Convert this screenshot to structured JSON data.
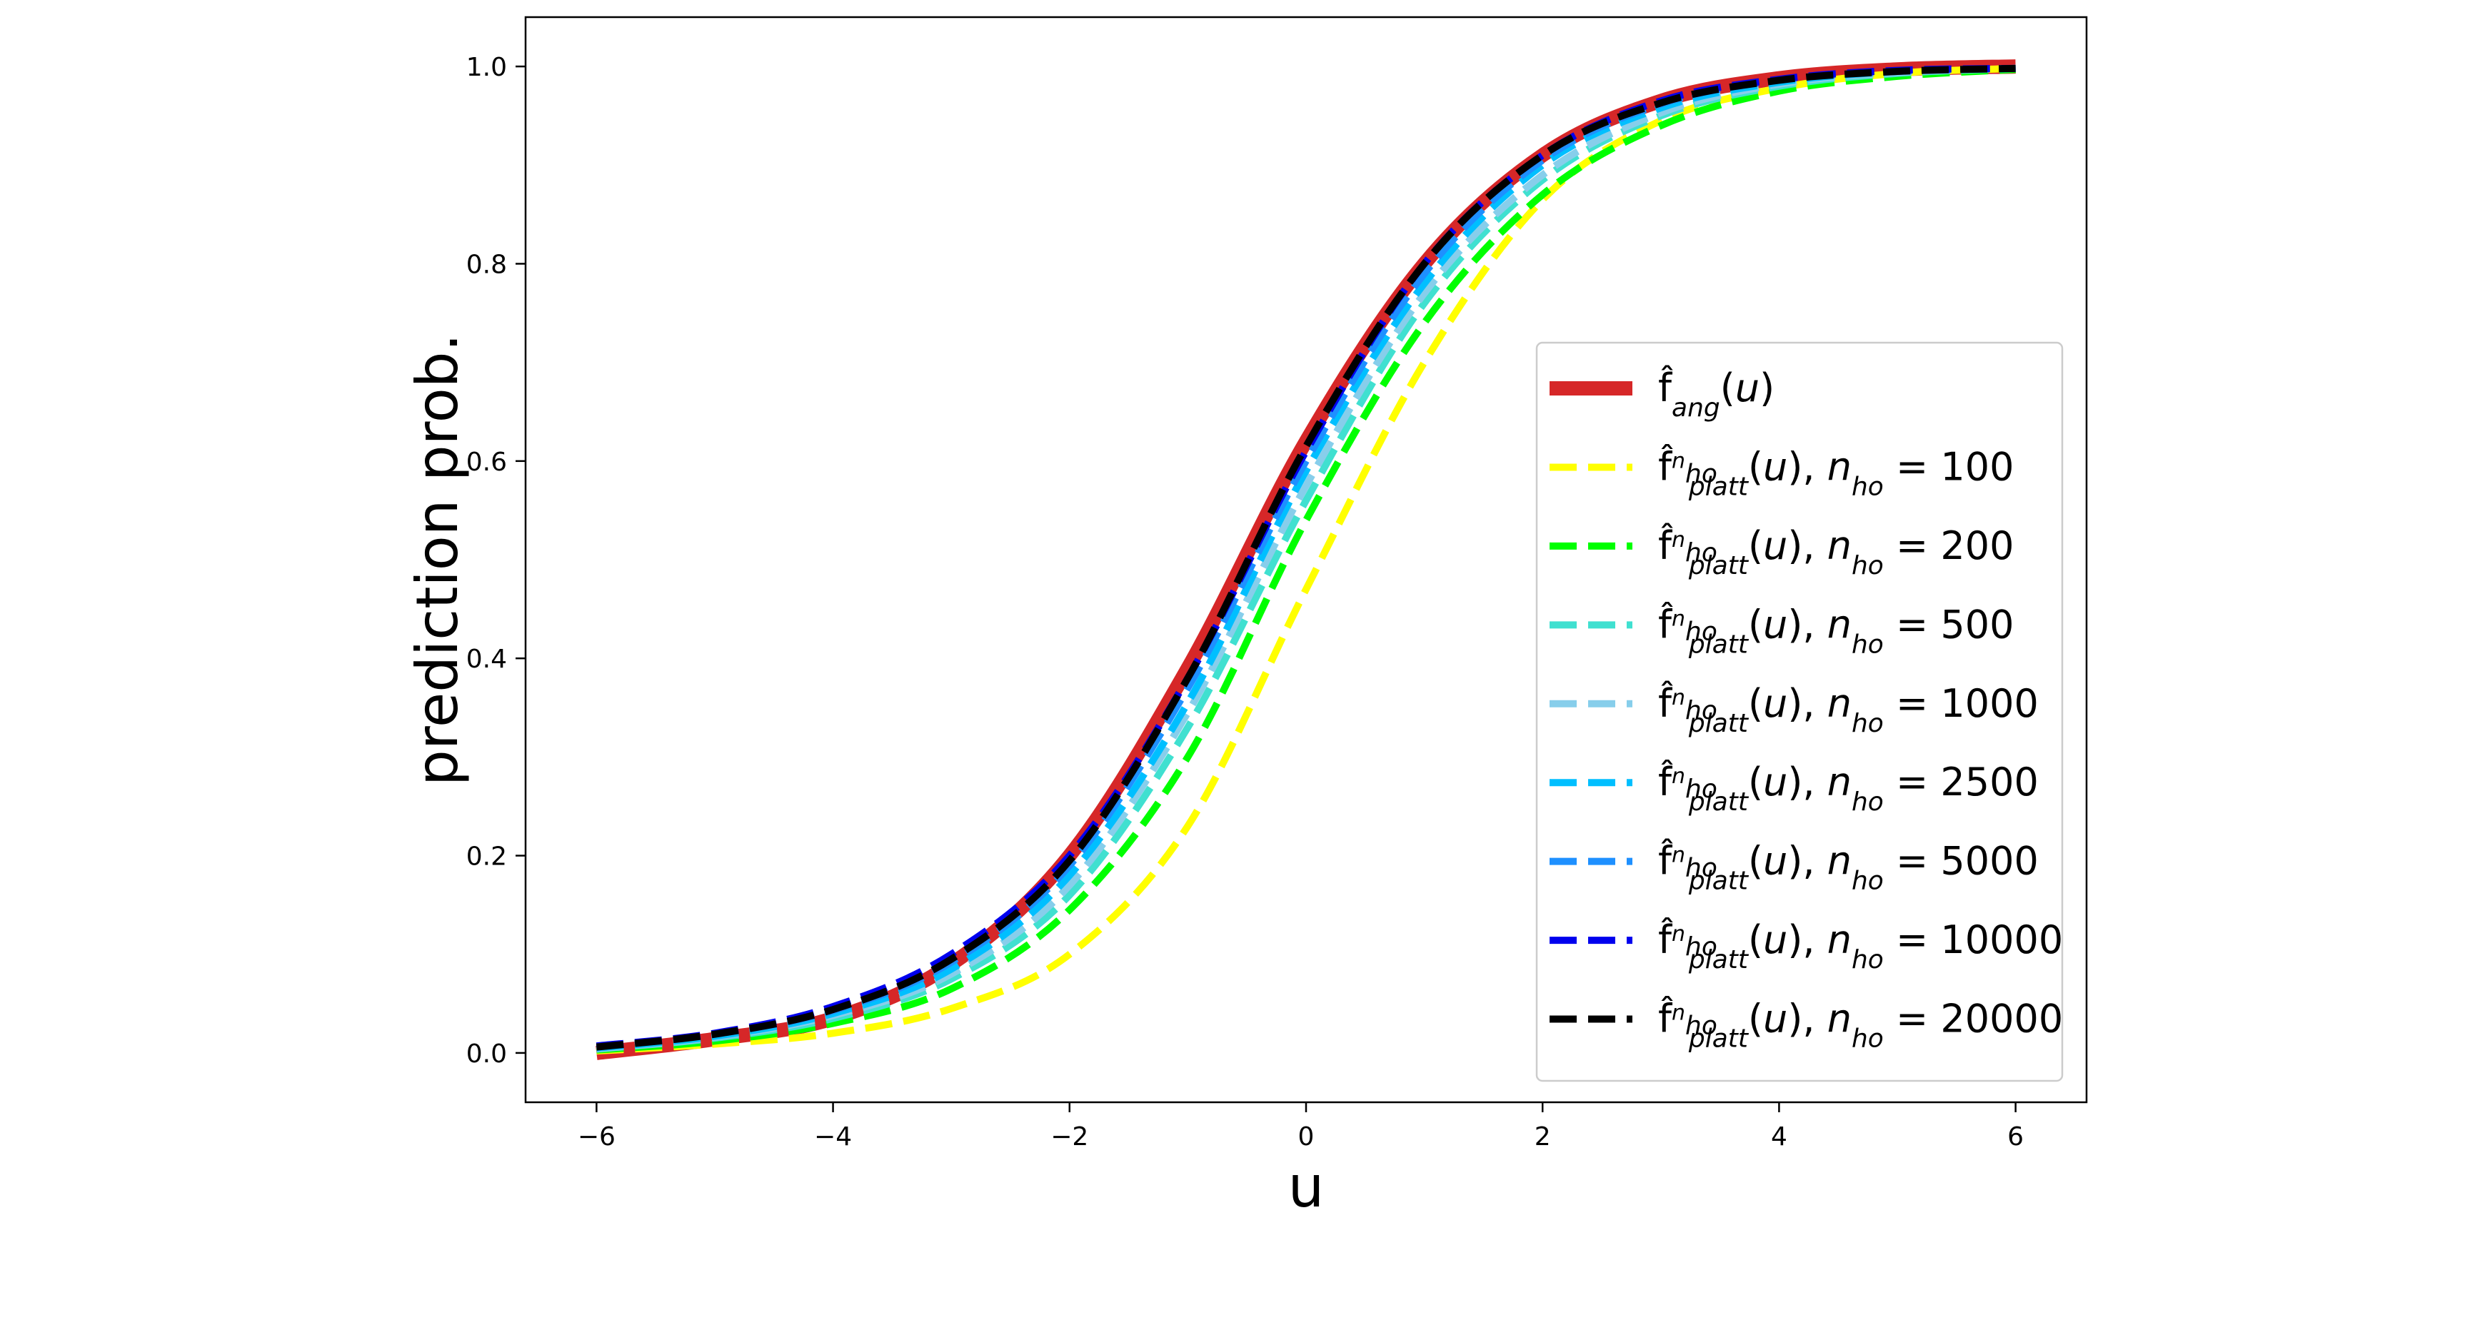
{
  "chart_data": {
    "type": "line",
    "xlabel": "u",
    "ylabel": "prediction prob.",
    "xlim": [
      -6.6,
      6.6
    ],
    "ylim": [
      -0.05,
      1.05
    ],
    "x_ticks": [
      -6,
      -4,
      -2,
      0,
      2,
      4,
      6
    ],
    "x_tick_labels": [
      "−6",
      "−4",
      "−2",
      "0",
      "2",
      "4",
      "6"
    ],
    "y_ticks": [
      0.0,
      0.2,
      0.4,
      0.6,
      0.8,
      1.0
    ],
    "y_tick_labels": [
      "0.0",
      "0.2",
      "0.4",
      "0.6",
      "0.8",
      "1.0"
    ],
    "grid": false,
    "legend_position": "center-right",
    "x": [
      -6,
      -5,
      -4,
      -3,
      -2,
      -1,
      0,
      1,
      2,
      3,
      4,
      5,
      6
    ],
    "series": [
      {
        "legend_html": "f̂<tspan class=\"legend-sub\" baseline-shift=\"sub\" font-style=\"italic\">ang</tspan>(<tspan font-style=\"italic\">u</tspan>)",
        "color": "#d62728",
        "style": "solid",
        "values": [
          0.0,
          0.014,
          0.035,
          0.09,
          0.2,
          0.39,
          0.62,
          0.8,
          0.91,
          0.965,
          0.988,
          0.997,
          1.0
        ]
      },
      {
        "legend_html": "f̂<tspan class=\"legend-sup\" baseline-shift=\"super\" font-style=\"italic\">n<tspan class=\"legend-sub\" baseline-shift=\"sub\">ho</tspan></tspan><tspan class=\"legend-sub\" baseline-shift=\"sub\" font-style=\"italic\" dx=\"-40\">platt</tspan>(<tspan font-style=\"italic\">u</tspan>), <tspan font-style=\"italic\">n</tspan><tspan class=\"legend-sub\" baseline-shift=\"sub\" font-style=\"italic\">ho</tspan> = 100",
        "color": "#ffff00",
        "style": "dashed",
        "values": [
          0.002,
          0.009,
          0.02,
          0.045,
          0.1,
          0.23,
          0.47,
          0.7,
          0.865,
          0.945,
          0.978,
          0.993,
          0.998
        ]
      },
      {
        "legend_html": "f̂<tspan class=\"legend-sup\" baseline-shift=\"super\" font-style=\"italic\">n<tspan class=\"legend-sub\" baseline-shift=\"sub\">ho</tspan></tspan><tspan class=\"legend-sub\" baseline-shift=\"sub\" font-style=\"italic\" dx=\"-40\">platt</tspan>(<tspan font-style=\"italic\">u</tspan>), <tspan font-style=\"italic\">n</tspan><tspan class=\"legend-sub\" baseline-shift=\"sub\" font-style=\"italic\">ho</tspan> = 200",
        "color": "#00ff00",
        "style": "dashed",
        "values": [
          0.003,
          0.012,
          0.03,
          0.065,
          0.145,
          0.3,
          0.54,
          0.74,
          0.87,
          0.94,
          0.975,
          0.99,
          0.997
        ]
      },
      {
        "legend_html": "f̂<tspan class=\"legend-sup\" baseline-shift=\"super\" font-style=\"italic\">n<tspan class=\"legend-sub\" baseline-shift=\"sub\">ho</tspan></tspan><tspan class=\"legend-sub\" baseline-shift=\"sub\" font-style=\"italic\" dx=\"-40\">platt</tspan>(<tspan font-style=\"italic\">u</tspan>), <tspan font-style=\"italic\">n</tspan><tspan class=\"legend-sub\" baseline-shift=\"sub\" font-style=\"italic\">ho</tspan> = 500",
        "color": "#40e0d0",
        "style": "dashed",
        "values": [
          0.004,
          0.015,
          0.035,
          0.075,
          0.16,
          0.33,
          0.56,
          0.76,
          0.885,
          0.95,
          0.98,
          0.993,
          0.998
        ]
      },
      {
        "legend_html": "f̂<tspan class=\"legend-sup\" baseline-shift=\"super\" font-style=\"italic\">n<tspan class=\"legend-sub\" baseline-shift=\"sub\">ho</tspan></tspan><tspan class=\"legend-sub\" baseline-shift=\"sub\" font-style=\"italic\" dx=\"-40\">platt</tspan>(<tspan font-style=\"italic\">u</tspan>), <tspan font-style=\"italic\">n</tspan><tspan class=\"legend-sub\" baseline-shift=\"sub\" font-style=\"italic\">ho</tspan> = 1000",
        "color": "#87ceeb",
        "style": "dashed",
        "values": [
          0.004,
          0.016,
          0.038,
          0.08,
          0.17,
          0.345,
          0.575,
          0.77,
          0.89,
          0.953,
          0.982,
          0.994,
          0.998
        ]
      },
      {
        "legend_html": "f̂<tspan class=\"legend-sup\" baseline-shift=\"super\" font-style=\"italic\">n<tspan class=\"legend-sub\" baseline-shift=\"sub\">ho</tspan></tspan><tspan class=\"legend-sub\" baseline-shift=\"sub\" font-style=\"italic\" dx=\"-40\">platt</tspan>(<tspan font-style=\"italic\">u</tspan>), <tspan font-style=\"italic\">n</tspan><tspan class=\"legend-sub\" baseline-shift=\"sub\" font-style=\"italic\">ho</tspan> = 2500",
        "color": "#00bfff",
        "style": "dashed",
        "values": [
          0.005,
          0.017,
          0.04,
          0.085,
          0.18,
          0.355,
          0.59,
          0.78,
          0.9,
          0.958,
          0.984,
          0.995,
          0.998
        ]
      },
      {
        "legend_html": "f̂<tspan class=\"legend-sup\" baseline-shift=\"super\" font-style=\"italic\">n<tspan class=\"legend-sub\" baseline-shift=\"sub\">ho</tspan></tspan><tspan class=\"legend-sub\" baseline-shift=\"sub\" font-style=\"italic\" dx=\"-40\">platt</tspan>(<tspan font-style=\"italic\">u</tspan>), <tspan font-style=\"italic\">n</tspan><tspan class=\"legend-sub\" baseline-shift=\"sub\" font-style=\"italic\">ho</tspan> = 5000",
        "color": "#1e90ff",
        "style": "dashed",
        "values": [
          0.006,
          0.019,
          0.043,
          0.092,
          0.19,
          0.37,
          0.6,
          0.79,
          0.905,
          0.962,
          0.986,
          0.995,
          0.998
        ]
      },
      {
        "legend_html": "f̂<tspan class=\"legend-sup\" baseline-shift=\"super\" font-style=\"italic\">n<tspan class=\"legend-sub\" baseline-shift=\"sub\">ho</tspan></tspan><tspan class=\"legend-sub\" baseline-shift=\"sub\" font-style=\"italic\" dx=\"-40\">platt</tspan>(<tspan font-style=\"italic\">u</tspan>), <tspan font-style=\"italic\">n</tspan><tspan class=\"legend-sub\" baseline-shift=\"sub\" font-style=\"italic\">ho</tspan> = 10000",
        "color": "#0000ee",
        "style": "dashed",
        "values": [
          0.007,
          0.02,
          0.047,
          0.1,
          0.2,
          0.38,
          0.61,
          0.8,
          0.91,
          0.965,
          0.987,
          0.996,
          0.998
        ]
      },
      {
        "legend_html": "f̂<tspan class=\"legend-sup\" baseline-shift=\"super\" font-style=\"italic\">n<tspan class=\"legend-sub\" baseline-shift=\"sub\">ho</tspan></tspan><tspan class=\"legend-sub\" baseline-shift=\"sub\" font-style=\"italic\" dx=\"-40\">platt</tspan>(<tspan font-style=\"italic\">u</tspan>), <tspan font-style=\"italic\">n</tspan><tspan class=\"legend-sub\" baseline-shift=\"sub\" font-style=\"italic\">ho</tspan> = 20000",
        "color": "#000000",
        "style": "dashed",
        "values": [
          0.006,
          0.019,
          0.044,
          0.095,
          0.195,
          0.38,
          0.615,
          0.8,
          0.91,
          0.963,
          0.986,
          0.995,
          0.998
        ]
      }
    ]
  }
}
